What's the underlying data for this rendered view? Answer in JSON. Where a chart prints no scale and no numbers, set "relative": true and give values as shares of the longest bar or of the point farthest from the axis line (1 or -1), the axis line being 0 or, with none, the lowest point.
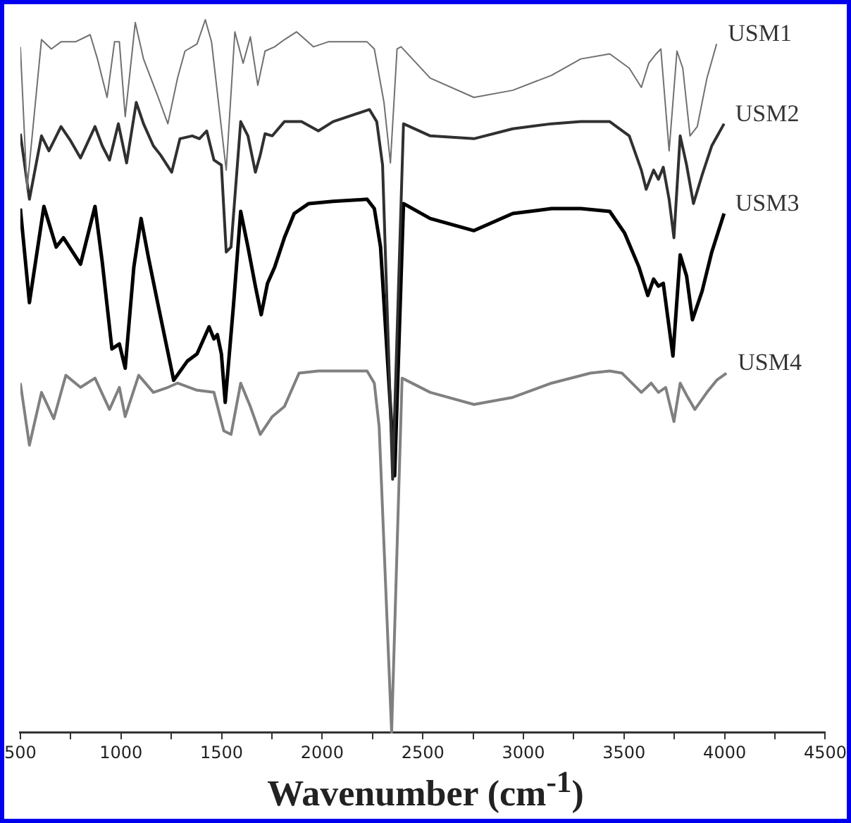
{
  "chart_data": {
    "type": "line",
    "relative": true,
    "xlabel": "Wavenumber (cm$^{-1}$)",
    "xlim": [
      500,
      4500
    ],
    "xticks": [
      500,
      {
        "value": 750,
        "label": null
      },
      1000,
      {
        "value": 1250,
        "label": null
      },
      1500,
      {
        "value": 1750,
        "label": null
      },
      2000,
      {
        "value": 2250,
        "label": null
      },
      2500,
      {
        "value": 2750,
        "label": null
      },
      3000,
      {
        "value": 3250,
        "label": null
      },
      3500,
      {
        "value": 3750,
        "label": null
      },
      4000,
      {
        "value": 4250,
        "label": null
      },
      4500
    ],
    "legend": false,
    "grid": false,
    "marker": "none",
    "series": [
      {
        "name": "USM1",
        "color": "#707070",
        "x": [
          500,
          533,
          605,
          654,
          702,
          774,
          847,
          883,
          931,
          968,
          992,
          1021,
          1071,
          1112,
          1185,
          1233,
          1281,
          1318,
          1378,
          1419,
          1450,
          1523,
          1566,
          1607,
          1643,
          1680,
          1716,
          1764,
          1812,
          1873,
          1957,
          2030,
          2223,
          2259,
          2307,
          2339,
          2372,
          2392,
          2537,
          2754,
          2947,
          3140,
          3285,
          3429,
          3526,
          3586,
          3623,
          3659,
          3683,
          3724,
          3763,
          3792,
          3828,
          3864,
          3912,
          3960
        ],
        "values": [
          0.962,
          0.762,
          0.972,
          0.959,
          0.969,
          0.969,
          0.979,
          0.945,
          0.891,
          0.969,
          0.969,
          0.864,
          0.996,
          0.945,
          0.891,
          0.854,
          0.918,
          0.956,
          0.966,
          1.0,
          0.969,
          0.789,
          0.983,
          0.939,
          0.976,
          0.908,
          0.956,
          0.962,
          0.972,
          0.983,
          0.962,
          0.969,
          0.969,
          0.959,
          0.884,
          0.799,
          0.959,
          0.962,
          0.918,
          0.891,
          0.901,
          0.922,
          0.945,
          0.952,
          0.932,
          0.905,
          0.939,
          0.952,
          0.959,
          0.816,
          0.956,
          0.932,
          0.837,
          0.85,
          0.918,
          0.966
        ]
      },
      {
        "name": "USM2",
        "color": "#303030",
        "x": [
          500,
          545,
          605,
          642,
          702,
          750,
          799,
          871,
          907,
          943,
          987,
          1028,
          1076,
          1112,
          1161,
          1197,
          1252,
          1293,
          1354,
          1390,
          1426,
          1462,
          1499,
          1523,
          1547,
          1595,
          1631,
          1668,
          1692,
          1716,
          1752,
          1812,
          1897,
          1981,
          2054,
          2235,
          2271,
          2300,
          2350,
          2404,
          2537,
          2754,
          2947,
          3140,
          3285,
          3429,
          3526,
          3586,
          3610,
          3647,
          3671,
          3695,
          3724,
          3748,
          3779,
          3811,
          3845,
          3888,
          3936,
          3997
        ],
        "values": [
          0.84,
          0.748,
          0.837,
          0.816,
          0.85,
          0.83,
          0.806,
          0.85,
          0.823,
          0.803,
          0.854,
          0.799,
          0.884,
          0.854,
          0.823,
          0.81,
          0.786,
          0.833,
          0.837,
          0.833,
          0.844,
          0.803,
          0.796,
          0.674,
          0.681,
          0.857,
          0.837,
          0.786,
          0.81,
          0.84,
          0.837,
          0.857,
          0.857,
          0.844,
          0.857,
          0.874,
          0.857,
          0.796,
          0.355,
          0.854,
          0.837,
          0.833,
          0.847,
          0.854,
          0.857,
          0.857,
          0.837,
          0.789,
          0.762,
          0.789,
          0.776,
          0.793,
          0.748,
          0.694,
          0.837,
          0.796,
          0.742,
          0.782,
          0.823,
          0.854
        ]
      },
      {
        "name": "USM3",
        "color": "#000000",
        "x": [
          500,
          545,
          617,
          678,
          714,
          799,
          871,
          907,
          955,
          992,
          1021,
          1064,
          1100,
          1136,
          1185,
          1262,
          1330,
          1378,
          1438,
          1462,
          1479,
          1499,
          1518,
          1559,
          1595,
          1631,
          1668,
          1697,
          1728,
          1764,
          1812,
          1861,
          1933,
          2054,
          2223,
          2259,
          2290,
          2360,
          2404,
          2537,
          2754,
          2947,
          3140,
          3285,
          3429,
          3502,
          3574,
          3618,
          3647,
          3671,
          3695,
          3719,
          3743,
          3779,
          3811,
          3840,
          3888,
          3936,
          3997
        ],
        "values": [
          0.735,
          0.603,
          0.738,
          0.681,
          0.694,
          0.657,
          0.738,
          0.66,
          0.538,
          0.545,
          0.511,
          0.653,
          0.721,
          0.667,
          0.599,
          0.494,
          0.521,
          0.531,
          0.569,
          0.552,
          0.558,
          0.531,
          0.463,
          0.599,
          0.731,
          0.681,
          0.626,
          0.586,
          0.63,
          0.653,
          0.694,
          0.728,
          0.742,
          0.745,
          0.748,
          0.735,
          0.681,
          0.36,
          0.742,
          0.721,
          0.704,
          0.728,
          0.735,
          0.735,
          0.731,
          0.701,
          0.653,
          0.613,
          0.636,
          0.626,
          0.63,
          0.579,
          0.528,
          0.67,
          0.64,
          0.579,
          0.619,
          0.674,
          0.728
        ]
      },
      {
        "name": "USM4",
        "color": "#808080",
        "x": [
          500,
          545,
          605,
          666,
          726,
          799,
          871,
          943,
          992,
          1021,
          1088,
          1161,
          1233,
          1281,
          1378,
          1462,
          1511,
          1547,
          1595,
          1643,
          1692,
          1752,
          1812,
          1885,
          1981,
          2223,
          2259,
          2283,
          2345,
          2397,
          2537,
          2754,
          2947,
          3140,
          3333,
          3429,
          3490,
          3586,
          3635,
          3671,
          3707,
          3748,
          3779,
          3811,
          3852,
          3912,
          3960,
          4009
        ],
        "values": [
          0.49,
          0.403,
          0.477,
          0.44,
          0.501,
          0.484,
          0.497,
          0.453,
          0.484,
          0.443,
          0.501,
          0.477,
          0.484,
          0.49,
          0.48,
          0.477,
          0.423,
          0.418,
          0.49,
          0.457,
          0.418,
          0.443,
          0.457,
          0.504,
          0.507,
          0.507,
          0.49,
          0.429,
          0,
          0.497,
          0.477,
          0.46,
          0.47,
          0.49,
          0.504,
          0.507,
          0.504,
          0.477,
          0.49,
          0.477,
          0.484,
          0.436,
          0.49,
          0.473,
          0.453,
          0.477,
          0.494,
          0.504
        ]
      }
    ]
  }
}
